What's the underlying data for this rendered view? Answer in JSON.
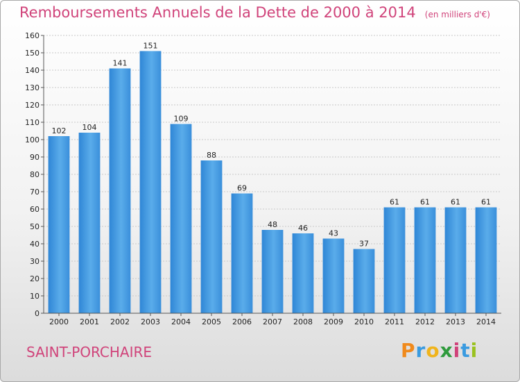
{
  "title": "Remboursements Annuels de la Dette de 2000 à 2014",
  "unit_note": "(en milliers d'€)",
  "commune": "SAINT-PORCHAIRE",
  "brand": {
    "letters": [
      "P",
      "r",
      "o",
      "x",
      "i",
      "t",
      "i"
    ],
    "colors": [
      "#f08a1c",
      "#3a9be0",
      "#f0b41c",
      "#2e9a3c",
      "#d0437a",
      "#3a9be0",
      "#9ac21f"
    ]
  },
  "colors": {
    "bar": "#3d93dc",
    "title": "#d0437a",
    "grid": "#c8c8c8"
  },
  "chart_data": {
    "type": "bar",
    "categories": [
      "2000",
      "2001",
      "2002",
      "2003",
      "2004",
      "2005",
      "2006",
      "2007",
      "2008",
      "2009",
      "2010",
      "2011",
      "2012",
      "2013",
      "2014"
    ],
    "values": [
      102,
      104,
      141,
      151,
      109,
      88,
      69,
      48,
      46,
      43,
      37,
      61,
      61,
      61,
      61
    ],
    "ylim": [
      0,
      160
    ],
    "yticks": [
      0,
      10,
      20,
      30,
      40,
      50,
      60,
      70,
      80,
      90,
      100,
      110,
      120,
      130,
      140,
      150,
      160
    ],
    "grid": true
  }
}
